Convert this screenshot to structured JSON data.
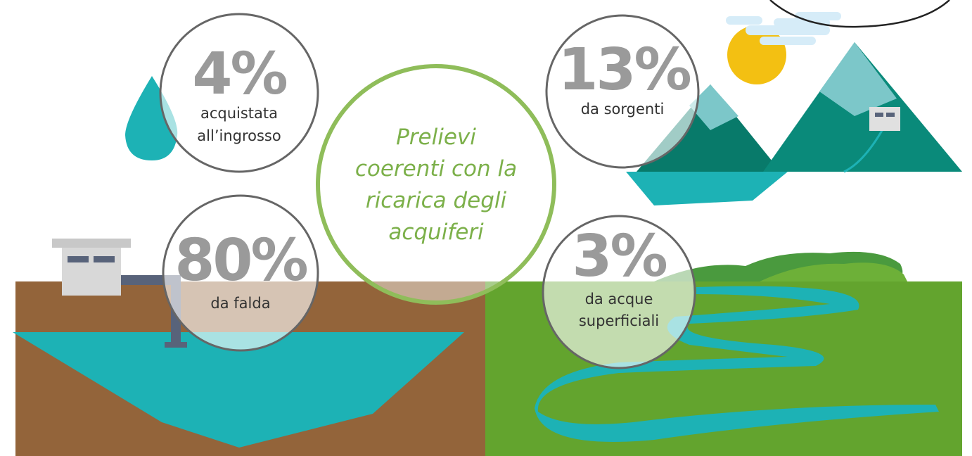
{
  "center_text": [
    "Prelievi",
    "coerenti con la",
    "ricarica degli",
    "acquiferi"
  ],
  "sources": [
    {
      "value": "4%",
      "label": [
        "acquistata",
        "all’ingrosso"
      ]
    },
    {
      "value": "13%",
      "label": [
        "da sorgenti"
      ]
    },
    {
      "value": "80%",
      "label": [
        "da falda"
      ]
    },
    {
      "value": "3%",
      "label": [
        "da acque",
        "superficiali"
      ]
    }
  ]
}
